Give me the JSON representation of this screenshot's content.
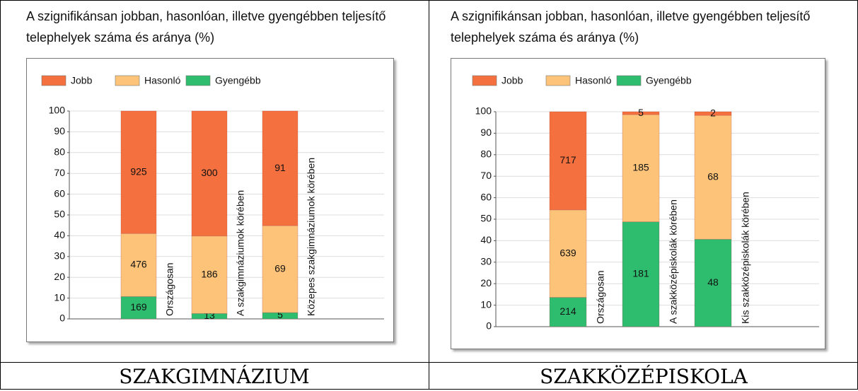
{
  "chart_data": [
    {
      "type": "bar",
      "stacked": "percent",
      "title": "A szignifikánsan jobban, hasonlóan, illetve gyengébben teljesítő telephelyek száma és aránya (%)",
      "categories": [
        "Országosan",
        "A szakgimnáziumok körében",
        "Közepes szakgimnáziumok körében"
      ],
      "series": [
        {
          "name": "Gyengébb",
          "color": "#2ebd6f",
          "values": [
            169,
            13,
            5
          ]
        },
        {
          "name": "Hasonló",
          "color": "#fdc479",
          "values": [
            476,
            186,
            69
          ]
        },
        {
          "name": "Jobb",
          "color": "#f4703e",
          "values": [
            925,
            300,
            91
          ]
        }
      ],
      "ylim": [
        0,
        100
      ],
      "yticks": [
        0,
        10,
        20,
        30,
        40,
        50,
        60,
        70,
        80,
        90,
        100
      ],
      "grid": true,
      "legend": "top"
    },
    {
      "type": "bar",
      "stacked": "percent",
      "title": "A szignifikánsan jobban, hasonlóan, illetve gyengébben teljesítő telephelyek száma és aránya (%)",
      "categories": [
        "Országosan",
        "A szakközépiskolák körében",
        "Kis szakközépiskolák körében"
      ],
      "series": [
        {
          "name": "Gyengébb",
          "color": "#2ebd6f",
          "values": [
            214,
            181,
            48
          ]
        },
        {
          "name": "Hasonló",
          "color": "#fdc479",
          "values": [
            639,
            185,
            68
          ]
        },
        {
          "name": "Jobb",
          "color": "#f4703e",
          "values": [
            717,
            5,
            2
          ]
        }
      ],
      "ylim": [
        0,
        100
      ],
      "yticks": [
        0,
        10,
        20,
        30,
        40,
        50,
        60,
        70,
        80,
        90,
        100
      ],
      "grid": true,
      "legend": "top"
    }
  ],
  "captions": [
    "SZAKGIMNÁZIUM",
    "SZAKKÖZÉPISKOLA"
  ]
}
